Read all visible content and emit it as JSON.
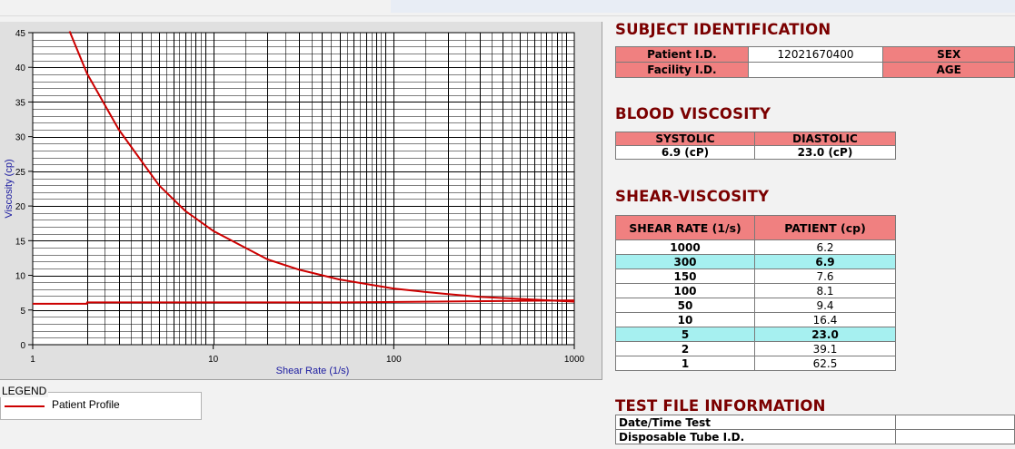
{
  "chart_data": {
    "type": "line",
    "xlabel": "Shear Rate (1/s)",
    "ylabel": "Viscosity (cp)",
    "x_scale": "log",
    "xlim": [
      1,
      1000
    ],
    "ylim": [
      0,
      45
    ],
    "x_ticks": [
      "1",
      "10",
      "100",
      "1000"
    ],
    "y_ticks": [
      "0",
      "5",
      "10",
      "15",
      "20",
      "25",
      "30",
      "35",
      "40",
      "45"
    ],
    "grid": true,
    "legend": "bottom-left",
    "series": [
      {
        "name": "Patient Profile",
        "color": "#cc0000",
        "x": [
          1.6,
          2,
          3,
          5,
          7,
          10,
          20,
          30,
          50,
          100,
          150,
          200,
          300,
          500,
          1000
        ],
        "y": [
          45.2,
          39.1,
          31.0,
          23.0,
          19.3,
          16.4,
          12.3,
          10.8,
          9.4,
          8.1,
          7.6,
          7.3,
          6.9,
          6.6,
          6.2
        ]
      },
      {
        "color": "#cc0000",
        "x": [
          1,
          2,
          2,
          50,
          1000
        ],
        "y": [
          5.9,
          5.9,
          6.1,
          6.1,
          6.4
        ]
      }
    ]
  },
  "legend": {
    "title": "LEGEND",
    "entry": "Patient Profile"
  },
  "subject": {
    "title": "SUBJECT IDENTIFICATION",
    "patient_id_label": "Patient I.D.",
    "patient_id_value": "12021670400",
    "facility_id_label": "Facility I.D.",
    "facility_id_value": "",
    "sex_label": "SEX",
    "age_label": "AGE"
  },
  "blood": {
    "title": "BLOOD VISCOSITY",
    "systolic_label": "SYSTOLIC",
    "diastolic_label": "DIASTOLIC",
    "systolic_value": "6.9 (cP)",
    "diastolic_value": "23.0 (cP)"
  },
  "shear": {
    "title": "SHEAR-VISCOSITY",
    "col_rate": "SHEAR RATE (1/s)",
    "col_patient": "PATIENT (cp)",
    "rows": [
      {
        "rate": "1000",
        "value": "6.2"
      },
      {
        "rate": "300",
        "value": "6.9"
      },
      {
        "rate": "150",
        "value": "7.6"
      },
      {
        "rate": "100",
        "value": "8.1"
      },
      {
        "rate": "50",
        "value": "9.4"
      },
      {
        "rate": "10",
        "value": "16.4"
      },
      {
        "rate": "5",
        "value": "23.0"
      },
      {
        "rate": "2",
        "value": "39.1"
      },
      {
        "rate": "1",
        "value": "62.5"
      }
    ]
  },
  "test_file": {
    "title": "TEST FILE INFORMATION",
    "datetime_label": "Date/Time Test",
    "tube_label": "Disposable Tube I.D."
  }
}
